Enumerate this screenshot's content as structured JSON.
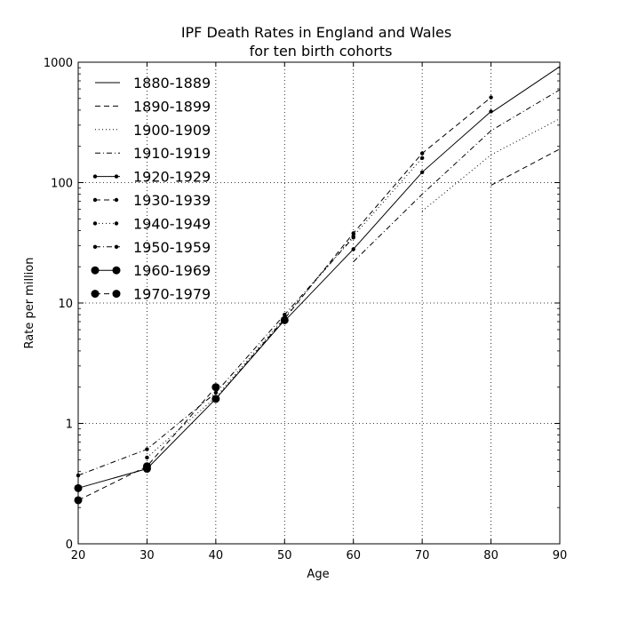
{
  "chart_data": {
    "type": "line",
    "title": [
      "IPF Death Rates in England and Wales",
      "for ten birth cohorts"
    ],
    "xlabel": "Age",
    "ylabel": "Rate per million",
    "xlim": [
      20,
      90
    ],
    "ylim": [
      0.1,
      1000
    ],
    "yscale": "log",
    "x_ticks": [
      20,
      30,
      40,
      50,
      60,
      70,
      80,
      90
    ],
    "y_ticks": [
      {
        "value": 0.1,
        "label": "0"
      },
      {
        "value": 1,
        "label": "1"
      },
      {
        "value": 10,
        "label": "10"
      },
      {
        "value": 100,
        "label": "100"
      },
      {
        "value": 1000,
        "label": "1000"
      }
    ],
    "grid": true,
    "legend_position": "top-left",
    "series": [
      {
        "name": "1880-1889",
        "dash": "solid",
        "marker": "none",
        "points": [
          [
            80,
            380
          ],
          [
            90,
            920
          ]
        ]
      },
      {
        "name": "1890-1899",
        "dash": "dashed",
        "marker": "none",
        "points": [
          [
            80,
            95
          ],
          [
            90,
            190
          ]
        ]
      },
      {
        "name": "1900-1909",
        "dash": "dotted",
        "marker": "none",
        "points": [
          [
            70,
            58
          ],
          [
            80,
            170
          ],
          [
            90,
            340
          ]
        ]
      },
      {
        "name": "1910-1919",
        "dash": "dashdot",
        "marker": "none",
        "points": [
          [
            60,
            22
          ],
          [
            70,
            80
          ],
          [
            80,
            270
          ],
          [
            90,
            590
          ]
        ]
      },
      {
        "name": "1920-1929",
        "dash": "solid",
        "marker": "small",
        "points": [
          [
            50,
            7.1
          ],
          [
            60,
            28
          ],
          [
            70,
            122
          ],
          [
            80,
            390
          ]
        ]
      },
      {
        "name": "1930-1939",
        "dash": "dashed",
        "marker": "small",
        "points": [
          [
            40,
            1.6
          ],
          [
            50,
            7.4
          ],
          [
            60,
            38
          ],
          [
            70,
            175
          ],
          [
            80,
            510
          ]
        ]
      },
      {
        "name": "1940-1949",
        "dash": "dotted",
        "marker": "small",
        "points": [
          [
            30,
            0.52
          ],
          [
            40,
            1.65
          ],
          [
            50,
            7.6
          ],
          [
            60,
            36
          ],
          [
            70,
            160
          ]
        ]
      },
      {
        "name": "1950-1959",
        "dash": "dashdot",
        "marker": "small",
        "points": [
          [
            20,
            0.37
          ],
          [
            30,
            0.61
          ],
          [
            40,
            1.8
          ],
          [
            50,
            8.0
          ],
          [
            60,
            35
          ]
        ]
      },
      {
        "name": "1960-1969",
        "dash": "solid",
        "marker": "large",
        "points": [
          [
            20,
            0.29
          ],
          [
            30,
            0.42
          ],
          [
            40,
            1.6
          ],
          [
            50,
            7.2
          ]
        ]
      },
      {
        "name": "1970-1979",
        "dash": "dashed",
        "marker": "large",
        "points": [
          [
            20,
            0.23
          ],
          [
            30,
            0.44
          ],
          [
            40,
            2.0
          ]
        ]
      }
    ]
  }
}
